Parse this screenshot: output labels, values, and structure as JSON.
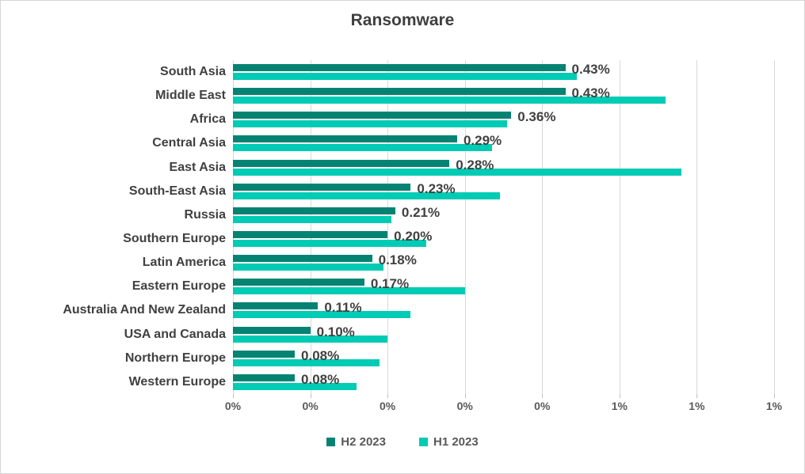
{
  "chart_data": {
    "type": "bar",
    "orientation": "horizontal",
    "title": "Ransomware",
    "categories": [
      "South Asia",
      "Middle East",
      "Africa",
      "Central Asia",
      "East Asia",
      "South-East Asia",
      "Russia",
      "Southern Europe",
      "Latin America",
      "Eastern Europe",
      "Australia And New Zealand",
      "USA and Canada",
      "Northern Europe",
      "Western Europe"
    ],
    "series": [
      {
        "name": "H2 2023",
        "color": "#058372",
        "values": [
          0.43,
          0.43,
          0.36,
          0.29,
          0.28,
          0.23,
          0.21,
          0.2,
          0.18,
          0.17,
          0.11,
          0.1,
          0.08,
          0.08
        ],
        "data_labels": [
          "0.43%",
          "0.43%",
          "0.36%",
          "0.29%",
          "0.28%",
          "0.23%",
          "0.21%",
          "0.20%",
          "0.18%",
          "0.17%",
          "0.11%",
          "0.10%",
          "0.08%",
          "0.08%"
        ]
      },
      {
        "name": "H1 2023",
        "color": "#00CBB4",
        "values": [
          0.445,
          0.56,
          0.355,
          0.335,
          0.58,
          0.345,
          0.205,
          0.25,
          0.195,
          0.3,
          0.23,
          0.2,
          0.19,
          0.16
        ],
        "data_labels": []
      }
    ],
    "x_axis": {
      "min": 0,
      "max": 0.7,
      "tick_step": 0.1,
      "unit": "percent",
      "tick_labels": [
        "0%",
        "0%",
        "0%",
        "0%",
        "0%",
        "1%",
        "1%",
        "1%"
      ]
    },
    "grid": true,
    "legend_position": "bottom",
    "value_labels_on_series": "H2 2023"
  },
  "colors": {
    "grid": "#D9D9D9",
    "tick": "#BFBFBF",
    "border": "#D6D6D6",
    "title_text": "#3F3F3F",
    "category_text": "#404040",
    "axis_text": "#595959"
  }
}
